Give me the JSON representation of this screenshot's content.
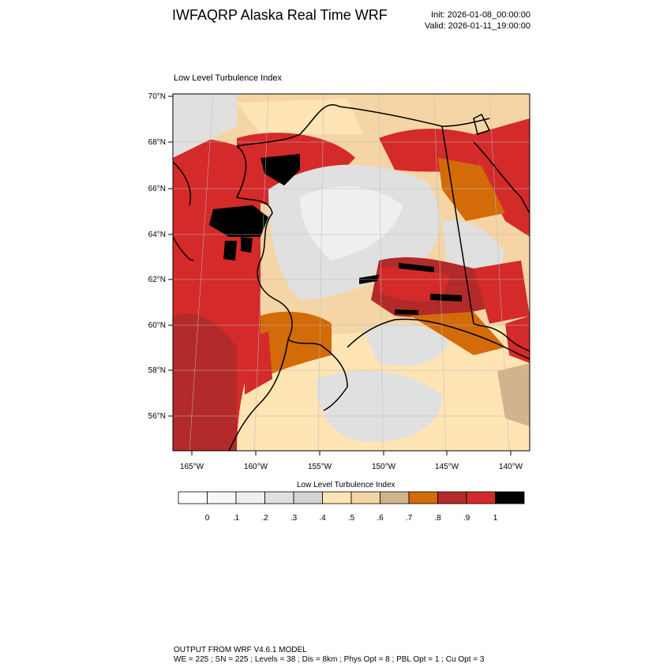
{
  "header": {
    "title": "IWFAQRP Alaska Real Time WRF",
    "init": "Init: 2026-01-08_00:00:00",
    "valid": "Valid: 2026-01-11_19:00:00"
  },
  "map": {
    "subtitle": "Low Level Turbulence Index",
    "lat_labels": [
      "70°N",
      "68°N",
      "66°N",
      "64°N",
      "62°N",
      "60°N",
      "58°N",
      "56°N"
    ],
    "lon_labels": [
      "165°W",
      "160°W",
      "155°W",
      "150°W",
      "145°W",
      "140°W"
    ],
    "region": "Alaska"
  },
  "colorbar": {
    "title": "Low Level Turbulence Index",
    "labels": [
      "0",
      ".1",
      ".2",
      ".3",
      ".4",
      ".5",
      ".6",
      ".7",
      ".8",
      ".9",
      "1"
    ],
    "colors": [
      "#ffffff",
      "#f8f8f8",
      "#efefef",
      "#e0e0e0",
      "#d4d4d4",
      "#ffe4b4",
      "#f5d5a5",
      "#d2b48c",
      "#d26b08",
      "#b22a2a",
      "#d42a2a",
      "#000000"
    ]
  },
  "footer": {
    "line1": "OUTPUT FROM WRF V4.6.1 MODEL",
    "line2": "WE = 225 ; SN = 225 ; Levels = 38 ; Dis = 8km ; Phys Opt = 8 ; PBL Opt = 1 ; Cu Opt = 3"
  }
}
